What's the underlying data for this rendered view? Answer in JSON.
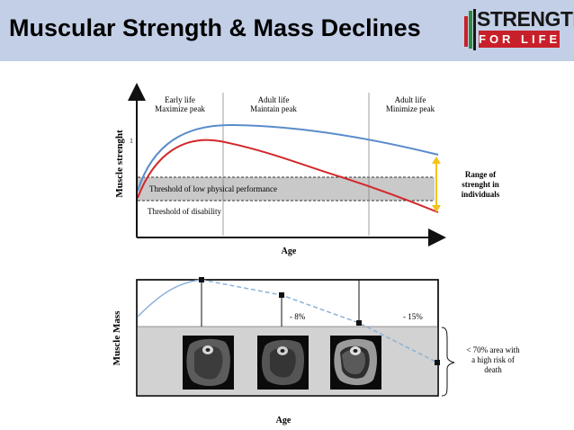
{
  "header": {
    "title": "Muscular Strength & Mass Declines",
    "logo": {
      "line1": "STRENGTH",
      "line2": "FOR LIFE",
      "colors": {
        "red": "#c8202a",
        "green": "#2f8a3b",
        "dark": "#161616"
      }
    },
    "background": "#c3cfe6"
  },
  "strength_chart": {
    "y_axis_label": "Muscle strenght",
    "y_tick": "1",
    "x_axis_label": "Age",
    "phases": [
      {
        "line1": "Early life",
        "line2": "Maximize peak"
      },
      {
        "line1": "Adult life",
        "line2": "Maintain peak"
      },
      {
        "line1": "Adult life",
        "line2": "Minimize peak"
      }
    ],
    "band_label": "Threshold of low physical performance",
    "disability_label": "Threshold of disability",
    "range_label": {
      "line1": "Range of",
      "line2": "strenght in",
      "line3": "individuals"
    },
    "colors": {
      "high_curve": "#5a8ccb",
      "low_curve": "#d2282b",
      "band": "#c9c9c9",
      "arrow": "#f2c21d"
    }
  },
  "mass_chart": {
    "y_axis_label": "Muscle Mass",
    "x_axis_label": "Age",
    "markers": [
      "- 8%",
      "- 15%"
    ],
    "annotation": {
      "line1": "< 70% area with",
      "line2": "a high risk of",
      "line3": "death"
    },
    "colors": {
      "curve": "#8ab2d8",
      "zone": "#d2d2d2"
    }
  }
}
